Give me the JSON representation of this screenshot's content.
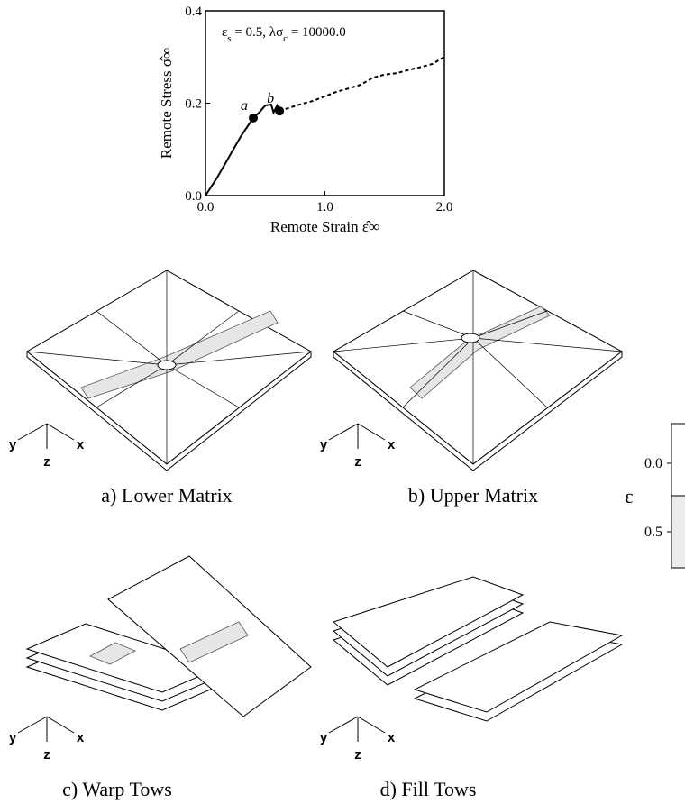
{
  "chart_data": {
    "type": "line",
    "ylabel": "Remote Stress  σ̂∞",
    "xlabel": "Remote Strain  ε̂∞",
    "annotation": [
      {
        "text": "ε"
      },
      {
        "text": "s",
        "sub": true
      },
      {
        "text": " = 0.5,  λσ"
      },
      {
        "text": "c",
        "sub": true
      },
      {
        "text": " = 10000.0"
      }
    ],
    "xlim": [
      0,
      2.0
    ],
    "ylim": [
      0,
      0.4
    ],
    "xticks": [
      {
        "value": 0,
        "label": "0.0"
      },
      {
        "value": 1,
        "label": "1.0"
      },
      {
        "value": 2,
        "label": "2.0"
      }
    ],
    "yticks": [
      {
        "value": 0,
        "label": "0.0"
      },
      {
        "value": 0.2,
        "label": "0.2"
      },
      {
        "value": 0.4,
        "label": "0.4"
      }
    ],
    "series": [
      {
        "color": "#000000",
        "dashed": false,
        "x": [
          0,
          0.1,
          0.2,
          0.3,
          0.4,
          0.45,
          0.5,
          0.55,
          0.57,
          0.6,
          0.62
        ],
        "values": [
          0,
          0.04,
          0.085,
          0.13,
          0.168,
          0.18,
          0.195,
          0.197,
          0.18,
          0.195,
          0.183
        ]
      },
      {
        "color": "#000000",
        "dashed": true,
        "x": [
          0.62,
          0.7,
          0.8,
          0.9,
          1.0,
          1.1,
          1.2,
          1.3,
          1.4,
          1.5,
          1.6,
          1.7,
          1.8,
          1.9,
          2.0
        ],
        "values": [
          0.183,
          0.19,
          0.198,
          0.205,
          0.215,
          0.225,
          0.232,
          0.24,
          0.255,
          0.262,
          0.265,
          0.272,
          0.278,
          0.285,
          0.3
        ]
      }
    ],
    "points": [
      {
        "label": "a",
        "x": 0.4,
        "y": 0.168
      },
      {
        "label": "b",
        "x": 0.62,
        "y": 0.183
      }
    ]
  },
  "panels": [
    {
      "caption": "a) Lower Matrix",
      "axes": [
        "y",
        "z",
        "x"
      ]
    },
    {
      "caption": "b) Upper Matrix",
      "axes": [
        "y",
        "z",
        "x"
      ]
    },
    {
      "caption": "c) Warp Tows",
      "axes": [
        "y",
        "z",
        "x"
      ]
    },
    {
      "caption": "d) Fill Tows",
      "axes": [
        "y",
        "z",
        "x"
      ]
    }
  ],
  "colorbar": {
    "label": "ε",
    "ticks": [
      {
        "value": 0,
        "label": "0.0"
      },
      {
        "value": 0.5,
        "label": "0.5"
      }
    ]
  }
}
